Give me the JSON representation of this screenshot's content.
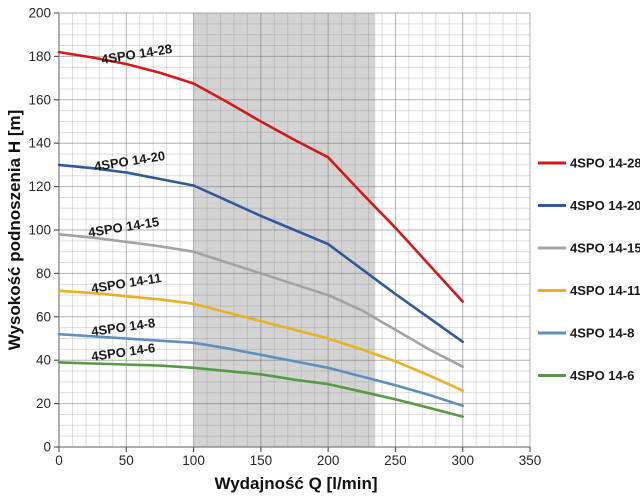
{
  "chart_data": {
    "type": "line",
    "title": "",
    "xlabel": "Wydajność Q [l/min]",
    "ylabel": "Wysokość podnoszenia H [m]",
    "xlim": [
      0,
      350
    ],
    "ylim": [
      0,
      200
    ],
    "x_major_ticks": [
      0,
      50,
      100,
      150,
      200,
      250,
      300,
      350
    ],
    "y_major_ticks": [
      0,
      20,
      40,
      60,
      80,
      100,
      120,
      140,
      160,
      180,
      200
    ],
    "x_minor_step": 10,
    "y_minor_step": 5,
    "grid": "major+minor",
    "legend_position": "right",
    "highlight_band": {
      "x_start": 100,
      "x_end": 235,
      "color": "#d3d3d3"
    },
    "x": [
      0,
      25,
      50,
      75,
      100,
      125,
      150,
      175,
      200,
      225,
      250,
      275,
      300
    ],
    "series": [
      {
        "name": "4SPO 14-28",
        "color": "#d11a1a",
        "values": [
          182,
          179.5,
          176.5,
          172.5,
          167.5,
          159,
          150,
          141.5,
          133.5,
          117,
          101,
          84,
          67
        ]
      },
      {
        "name": "4SPO 14-20",
        "color": "#305a9a",
        "values": [
          130,
          128.5,
          126.5,
          123.5,
          120.5,
          113.5,
          106.5,
          100,
          93.5,
          82,
          70.5,
          59.5,
          48.5
        ]
      },
      {
        "name": "4SPO 14-15",
        "color": "#a3a3a3",
        "values": [
          98,
          96.5,
          94.5,
          92.5,
          90,
          85,
          80,
          75,
          70,
          63,
          54,
          45,
          37
        ]
      },
      {
        "name": "4SPO 14-11",
        "color": "#e7b123",
        "values": [
          72,
          71,
          69.5,
          68,
          66,
          62,
          58,
          54,
          50,
          45,
          39.5,
          33,
          26
        ]
      },
      {
        "name": "4SPO 14-8",
        "color": "#5f90bd",
        "values": [
          52,
          51,
          50,
          49,
          48,
          45.5,
          42.5,
          39.5,
          36.5,
          32.5,
          28.5,
          24,
          19
        ]
      },
      {
        "name": "4SPO 14-6",
        "color": "#579a46",
        "values": [
          39,
          38.5,
          38,
          37.5,
          36.5,
          35,
          33.5,
          31,
          29,
          25.5,
          22,
          18,
          14
        ]
      }
    ]
  }
}
